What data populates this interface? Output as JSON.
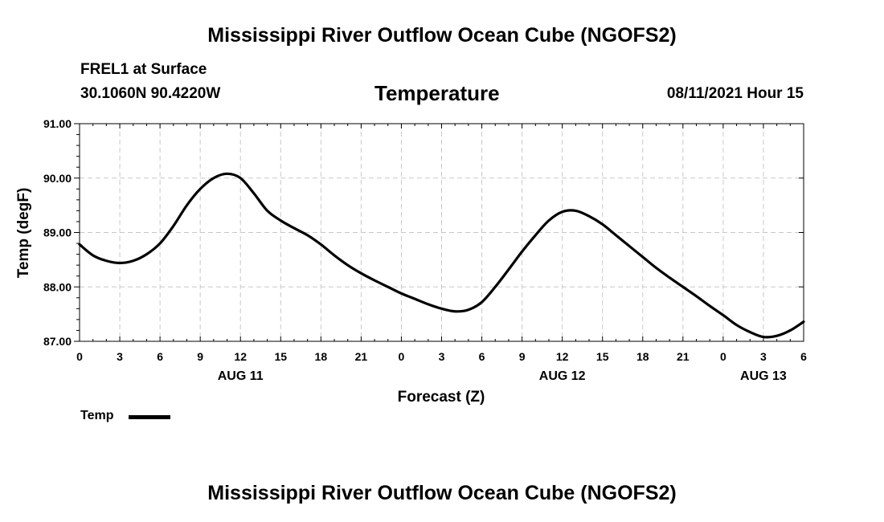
{
  "header": {
    "top_title": "Mississippi River Outflow Ocean Cube (NGOFS2)",
    "station": "FREL1 at Surface",
    "coords": "30.1060N  90.4220W",
    "plot_title": "Temperature",
    "timestamp": "08/11/2021 Hour 15",
    "bottom_title": "Mississippi River Outflow Ocean Cube (NGOFS2)"
  },
  "legend": {
    "label": "Temp"
  },
  "chart_data": {
    "type": "line",
    "title": "Temperature",
    "xlabel": "Forecast (Z)",
    "ylabel": "Temp (degF)",
    "xlim": [
      0,
      54
    ],
    "ylim": [
      87,
      91
    ],
    "grid": true,
    "x_tick_values": [
      0,
      3,
      6,
      9,
      12,
      15,
      18,
      21,
      24,
      27,
      30,
      33,
      36,
      39,
      42,
      45,
      48,
      51,
      54
    ],
    "x_tick_labels": [
      "0",
      "3",
      "6",
      "9",
      "12",
      "15",
      "18",
      "21",
      "0",
      "3",
      "6",
      "9",
      "12",
      "15",
      "18",
      "21",
      "0",
      "3",
      "6"
    ],
    "y_tick_values": [
      87,
      88,
      89,
      90,
      91
    ],
    "y_tick_labels": [
      "87.00",
      "88.00",
      "89.00",
      "90.00",
      "91.00"
    ],
    "date_labels": [
      {
        "x": 12,
        "label": "AUG 11"
      },
      {
        "x": 36,
        "label": "AUG 12"
      },
      {
        "x": 51,
        "label": "AUG 13"
      }
    ],
    "series": [
      {
        "name": "Temp",
        "color": "#000000",
        "x": [
          0,
          1,
          2,
          3,
          4,
          5,
          6,
          7,
          8,
          9,
          10,
          11,
          12,
          13,
          14,
          15,
          16,
          17,
          18,
          19,
          20,
          21,
          22,
          23,
          24,
          25,
          26,
          27,
          28,
          29,
          30,
          31,
          32,
          33,
          34,
          35,
          36,
          37,
          38,
          39,
          40,
          41,
          42,
          43,
          44,
          45,
          46,
          47,
          48,
          49,
          50,
          51,
          52,
          53,
          54
        ],
        "values": [
          88.78,
          88.58,
          88.48,
          88.44,
          88.48,
          88.6,
          88.8,
          89.12,
          89.5,
          89.8,
          90.0,
          90.08,
          90.0,
          89.72,
          89.4,
          89.22,
          89.08,
          88.95,
          88.78,
          88.58,
          88.4,
          88.25,
          88.12,
          88.0,
          87.88,
          87.78,
          87.68,
          87.6,
          87.55,
          87.58,
          87.72,
          88.0,
          88.32,
          88.65,
          88.95,
          89.22,
          89.38,
          89.4,
          89.3,
          89.15,
          88.95,
          88.75,
          88.55,
          88.35,
          88.17,
          88.0,
          87.83,
          87.65,
          87.48,
          87.3,
          87.17,
          87.08,
          87.1,
          87.2,
          87.36
        ]
      }
    ]
  }
}
